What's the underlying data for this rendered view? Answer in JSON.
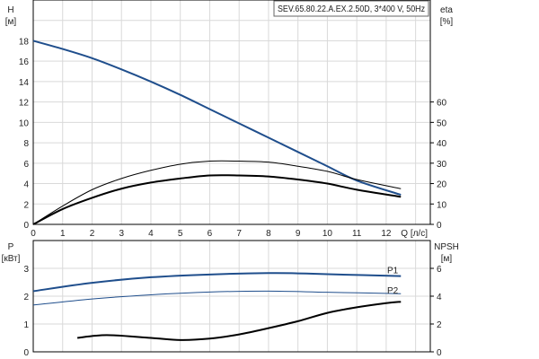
{
  "title_box": "SEV.65.80.22.A.EX.2.50D, 3*400 V, 50Hz",
  "colors": {
    "blue": "#1f4e8c",
    "black": "#000000",
    "grid": "#d9d9d9"
  },
  "chart_data": [
    {
      "type": "line",
      "xlabel": "Q [л/с]",
      "xlim": [
        0,
        13.5
      ],
      "xticks": [
        0,
        1,
        2,
        3,
        4,
        5,
        6,
        7,
        8,
        9,
        10,
        11,
        12
      ],
      "ylabel_left": "H",
      "ylabel_left_unit": "[м]",
      "ylim_left": [
        0,
        22
      ],
      "yticks_left": [
        0,
        2,
        4,
        6,
        8,
        10,
        12,
        14,
        16,
        18
      ],
      "ylabel_right": "eta",
      "ylabel_right_unit": "[%]",
      "ylim_right": [
        0,
        110
      ],
      "yticks_right": [
        0,
        10,
        20,
        30,
        40,
        50,
        60
      ],
      "grid": true,
      "series": [
        {
          "axis": "left",
          "color": "#1f4e8c",
          "width": 2,
          "x": [
            0,
            1,
            2,
            3,
            4,
            5,
            6,
            7,
            8,
            9,
            10,
            11,
            12.5
          ],
          "y": [
            18,
            17.2,
            16.3,
            15.2,
            14.0,
            12.7,
            11.3,
            9.9,
            8.5,
            7.1,
            5.7,
            4.3,
            2.9
          ]
        },
        {
          "axis": "right",
          "color": "#000000",
          "width": 1,
          "x": [
            0,
            1,
            2,
            3,
            4,
            5,
            6,
            7,
            8,
            9,
            10,
            11,
            12.5
          ],
          "y": [
            0,
            9,
            17,
            22.5,
            26.5,
            29.5,
            31,
            31,
            30.5,
            28.5,
            26,
            22,
            17.5
          ]
        },
        {
          "axis": "right",
          "color": "#000000",
          "width": 2,
          "x": [
            0,
            1,
            2,
            3,
            4,
            5,
            6,
            7,
            8,
            9,
            10,
            11,
            12.5
          ],
          "y": [
            0,
            7.5,
            13,
            17.5,
            20.5,
            22.5,
            24,
            24,
            23.5,
            22,
            20,
            17,
            13.5
          ]
        }
      ]
    },
    {
      "type": "line",
      "xlim": [
        0,
        13.5
      ],
      "ylabel_left": "P",
      "ylabel_left_unit": "[кВт]",
      "ylim_left": [
        0,
        4
      ],
      "yticks_left": [
        0,
        1,
        2,
        3
      ],
      "ylabel_right": "NPSH",
      "ylabel_right_unit": "[м]",
      "ylim_right": [
        0,
        8
      ],
      "yticks_right": [
        0,
        2,
        4,
        6
      ],
      "grid": true,
      "series": [
        {
          "name": "P1",
          "axis": "left",
          "color": "#1f4e8c",
          "width": 2,
          "x": [
            0,
            2,
            4,
            6,
            8,
            9,
            10,
            12.5
          ],
          "y": [
            2.18,
            2.48,
            2.68,
            2.78,
            2.83,
            2.82,
            2.79,
            2.72
          ]
        },
        {
          "name": "P2",
          "axis": "left",
          "color": "#1f4e8c",
          "width": 1,
          "x": [
            0,
            2,
            4,
            6,
            8,
            10,
            12.5
          ],
          "y": [
            1.68,
            1.9,
            2.05,
            2.15,
            2.18,
            2.14,
            2.09
          ]
        },
        {
          "axis": "right",
          "color": "#000000",
          "width": 2,
          "x": [
            1.5,
            2.5,
            4,
            5,
            6,
            7,
            8,
            9,
            10,
            11,
            12,
            12.5
          ],
          "y": [
            1.0,
            1.2,
            1.0,
            0.85,
            0.95,
            1.25,
            1.7,
            2.2,
            2.8,
            3.2,
            3.5,
            3.6
          ]
        }
      ]
    }
  ]
}
